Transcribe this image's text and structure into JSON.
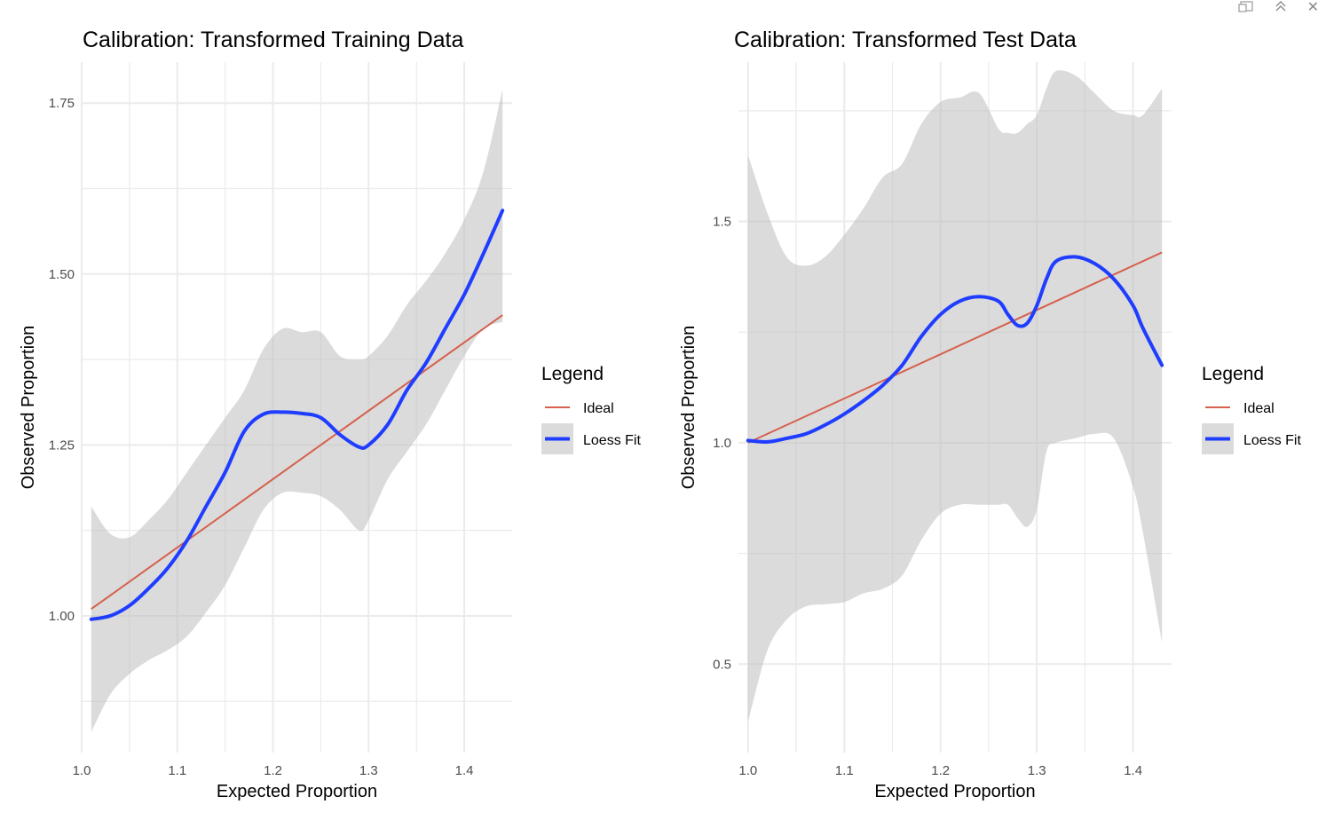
{
  "window_controls": {
    "icons": [
      "panel-icon",
      "collapse-icon",
      "close-icon"
    ],
    "collapse_glyph": "⌃",
    "close_glyph": "✕"
  },
  "chart_data": [
    {
      "type": "line",
      "title": "Calibration: Transformed Training Data",
      "xlabel": "Expected Proportion",
      "ylabel": "Observed Proportion",
      "xlim": [
        1.0,
        1.45
      ],
      "ylim": [
        0.8,
        1.81
      ],
      "x_ticks": [
        1.0,
        1.1,
        1.2,
        1.3,
        1.4
      ],
      "x_tick_labels": [
        "1.0",
        "1.1",
        "1.2",
        "1.3",
        "1.4"
      ],
      "y_ticks": [
        1.0,
        1.25,
        1.5,
        1.75
      ],
      "y_tick_labels": [
        "1.00",
        "1.25",
        "1.50",
        "1.75"
      ],
      "grid": true,
      "legend": {
        "title": "Legend",
        "position": "right"
      },
      "series": [
        {
          "name": "Ideal",
          "color": "#d6604d",
          "x": [
            1.01,
            1.44
          ],
          "y": [
            1.01,
            1.44
          ]
        },
        {
          "name": "Loess Fit",
          "color": "#1f3dff",
          "x": [
            1.01,
            1.03,
            1.05,
            1.07,
            1.09,
            1.11,
            1.13,
            1.15,
            1.17,
            1.19,
            1.21,
            1.23,
            1.25,
            1.27,
            1.29,
            1.3,
            1.32,
            1.34,
            1.36,
            1.38,
            1.4,
            1.42,
            1.44
          ],
          "y": [
            0.995,
            1.0,
            1.015,
            1.04,
            1.07,
            1.11,
            1.16,
            1.21,
            1.27,
            1.295,
            1.298,
            1.296,
            1.29,
            1.265,
            1.247,
            1.25,
            1.28,
            1.33,
            1.37,
            1.42,
            1.47,
            1.53,
            1.593
          ],
          "ci_upper": [
            1.16,
            1.12,
            1.115,
            1.14,
            1.17,
            1.21,
            1.25,
            1.29,
            1.33,
            1.39,
            1.42,
            1.415,
            1.415,
            1.38,
            1.375,
            1.38,
            1.41,
            1.455,
            1.49,
            1.53,
            1.58,
            1.65,
            1.77
          ],
          "ci_lower": [
            0.83,
            0.885,
            0.915,
            0.935,
            0.95,
            0.97,
            1.005,
            1.045,
            1.1,
            1.155,
            1.18,
            1.18,
            1.175,
            1.155,
            1.125,
            1.14,
            1.2,
            1.24,
            1.28,
            1.33,
            1.38,
            1.42,
            1.43
          ]
        }
      ]
    },
    {
      "type": "line",
      "title": "Calibration: Transformed Test Data",
      "xlabel": "Expected Proportion",
      "ylabel": "Observed Proportion",
      "xlim": [
        0.99,
        1.44
      ],
      "ylim": [
        0.3,
        1.86
      ],
      "x_ticks": [
        1.0,
        1.1,
        1.2,
        1.3,
        1.4
      ],
      "x_tick_labels": [
        "1.0",
        "1.1",
        "1.2",
        "1.3",
        "1.4"
      ],
      "y_ticks": [
        0.5,
        1.0,
        1.5
      ],
      "y_tick_labels": [
        "0.5",
        "1.0",
        "1.5"
      ],
      "grid": true,
      "legend": {
        "title": "Legend",
        "position": "right"
      },
      "series": [
        {
          "name": "Ideal",
          "color": "#d6604d",
          "x": [
            1.0,
            1.43
          ],
          "y": [
            1.0,
            1.43
          ]
        },
        {
          "name": "Loess Fit",
          "color": "#1f3dff",
          "x": [
            1.0,
            1.02,
            1.04,
            1.06,
            1.08,
            1.1,
            1.12,
            1.14,
            1.16,
            1.18,
            1.2,
            1.22,
            1.24,
            1.26,
            1.27,
            1.28,
            1.29,
            1.3,
            1.31,
            1.32,
            1.34,
            1.36,
            1.38,
            1.4,
            1.41,
            1.43
          ],
          "y": [
            1.005,
            1.002,
            1.01,
            1.02,
            1.04,
            1.065,
            1.095,
            1.13,
            1.175,
            1.24,
            1.29,
            1.32,
            1.33,
            1.32,
            1.29,
            1.265,
            1.27,
            1.31,
            1.37,
            1.41,
            1.42,
            1.405,
            1.37,
            1.31,
            1.26,
            1.175
          ],
          "ci_upper": [
            1.65,
            1.52,
            1.42,
            1.4,
            1.42,
            1.47,
            1.53,
            1.6,
            1.63,
            1.72,
            1.77,
            1.78,
            1.79,
            1.71,
            1.7,
            1.7,
            1.72,
            1.74,
            1.8,
            1.84,
            1.83,
            1.79,
            1.75,
            1.74,
            1.74,
            1.8
          ],
          "ci_lower": [
            0.37,
            0.53,
            0.6,
            0.63,
            0.635,
            0.64,
            0.66,
            0.67,
            0.7,
            0.78,
            0.84,
            0.86,
            0.86,
            0.86,
            0.86,
            0.83,
            0.81,
            0.85,
            0.98,
            1.0,
            1.01,
            1.02,
            1.01,
            0.9,
            0.8,
            0.55
          ]
        }
      ]
    }
  ]
}
